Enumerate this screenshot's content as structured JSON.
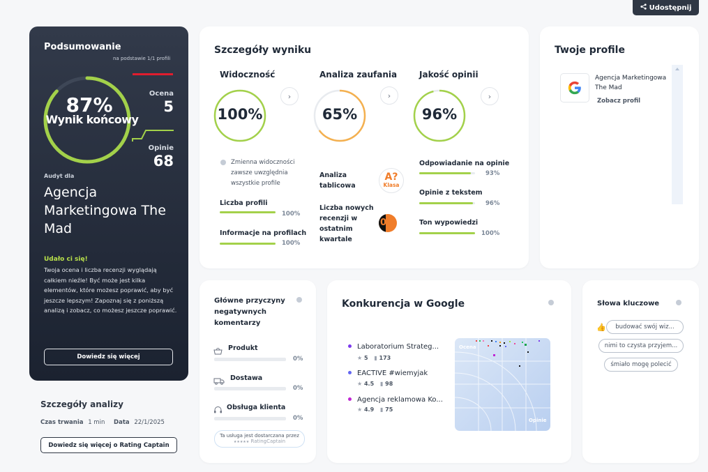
{
  "share": {
    "label": "Udostępnij"
  },
  "summary": {
    "title": "Podsumowanie",
    "subtitle": "na podstawie 1/1 profili",
    "score_percent": "87%",
    "score_caption": "Wynik końcowy",
    "score_fraction": 0.87,
    "ocena_label": "Ocena",
    "ocena_value": "5",
    "opinie_label": "Opinie",
    "opinie_value": "68",
    "audit_label": "Audyt dla",
    "company": "Agencja Marketingowa The Mad",
    "success_title": "Udało ci się!",
    "success_text": "Twoja ocena i liczba recenzji wyglądają całkiem nieźle! Być może jest kilka elementów, które możesz poprawić, aby być jeszcze lepszym! Zapoznaj się z poniższą analizą i zobacz, co możesz jeszcze poprawić.",
    "learn_more": "Dowiedz się więcej"
  },
  "analysis": {
    "title": "Szczegóły analizy",
    "duration_label": "Czas trwania",
    "duration_value": "1 min",
    "date_label": "Data",
    "date_value": "22/1/2025",
    "button": "Dowiedz się więcej o Rating Captain"
  },
  "details": {
    "title": "Szczegóły wyniku",
    "visibility": {
      "title": "Widoczność",
      "value": "100%",
      "fraction": 1.0,
      "note": "Zmienna widoczności zawsze uwzględnia wszystkie profile",
      "items": [
        {
          "label": "Liczba profili",
          "pct": "100%",
          "fraction": 1.0
        },
        {
          "label": "Informacje na profilach",
          "pct": "100%",
          "fraction": 1.0
        }
      ]
    },
    "trust": {
      "title": "Analiza zaufania",
      "value": "65%",
      "fraction": 0.65,
      "table_label": "Analiza tablicowa",
      "table_grade": "A?",
      "table_grade_sub": "Klasa",
      "new_reviews_label": "Liczba nowych recenzji w ostatnim kwartale",
      "new_reviews_value": "0"
    },
    "quality": {
      "title": "Jakość opinii",
      "value": "96%",
      "fraction": 0.96,
      "items": [
        {
          "label": "Odpowiadanie na opinie",
          "pct": "93%",
          "fraction": 0.93
        },
        {
          "label": "Opinie z tekstem",
          "pct": "96%",
          "fraction": 0.96
        },
        {
          "label": "Ton wypowiedzi",
          "pct": "100%",
          "fraction": 1.0
        }
      ]
    }
  },
  "profiles": {
    "title": "Twoje profile",
    "items": [
      {
        "name": "Agencja Marketingowa The Mad",
        "link": "Zobacz profil"
      }
    ]
  },
  "negatives": {
    "title": "Główne przyczyny negatywnych komentarzy",
    "items": [
      {
        "label": "Produkt",
        "pct": "0%",
        "icon": "basket-icon"
      },
      {
        "label": "Dostawa",
        "pct": "0%",
        "icon": "truck-icon"
      },
      {
        "label": "Obsługa klienta",
        "pct": "0%",
        "icon": "headset-icon"
      }
    ],
    "provided_by": "Ta usługa jest dostarczana przez",
    "provider": "RatingCaptain"
  },
  "competition": {
    "title": "Konkurencja w Google",
    "items": [
      {
        "name": "Laboratorium Strateg...",
        "rating": "5",
        "reviews": "173",
        "color": "#7c3aed"
      },
      {
        "name": "EACTIVE #wiemyjak",
        "rating": "4.5",
        "reviews": "98",
        "color": "#6366f1"
      },
      {
        "name": "Agencja reklamowa Ko...",
        "rating": "4.9",
        "reviews": "75",
        "color": "#c026d3"
      }
    ],
    "map_label_top": "Ocena",
    "map_label_bottom": "Opinie"
  },
  "keywords": {
    "title": "Słowa kluczowe",
    "items": [
      "budować swój wiz...",
      "nimi to czysta przyjem...",
      "śmiało mogę polecić"
    ]
  },
  "colors": {
    "accent": "#a3d14a",
    "trust": "#f4b04f",
    "dark": "#2f3744",
    "red": "#e11d2e"
  }
}
